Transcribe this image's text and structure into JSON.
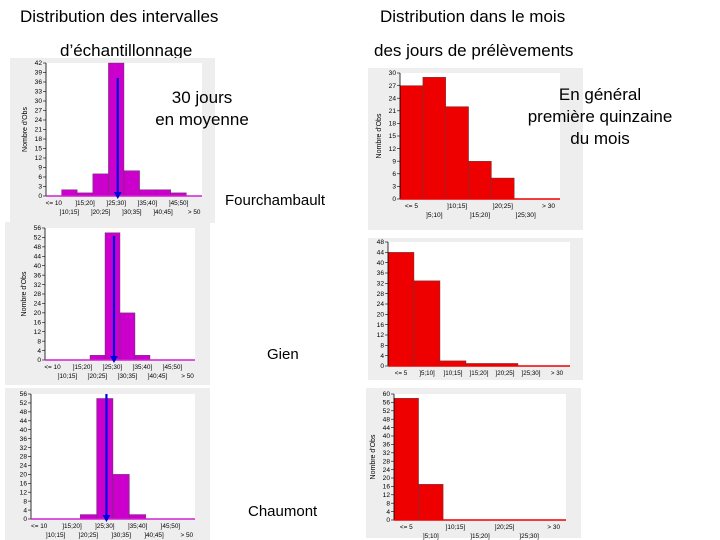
{
  "headings": {
    "left_line1": "Distribution des intervalles",
    "left_line2": "d’échantillonnage",
    "right_line1": "Distribution dans le mois",
    "right_line2": "des jours de prélèvements"
  },
  "annotations": {
    "avg_line1": "30 jours",
    "avg_line2": "en moyenne",
    "general_line1": "En général",
    "general_line2": "première quinzaine",
    "general_line3": "du mois"
  },
  "sites": [
    "Fourchambault",
    "Gien",
    "Chaumont"
  ],
  "colors": {
    "interval_bars": "#cc00cc",
    "interval_axis": "#d020d0",
    "day_bars": "#ee0000",
    "marker": "#0000dd"
  },
  "chart_data": [
    {
      "type": "bar",
      "site": "Fourchambault",
      "group": "intervalles",
      "ylabel": "Nombre d'Obs",
      "ylim": [
        0,
        42
      ],
      "yticks": [
        0,
        3,
        6,
        9,
        12,
        15,
        18,
        21,
        24,
        27,
        30,
        33,
        36,
        39,
        42
      ],
      "categories": [
        "<= 10",
        "]10;15]",
        "]15;20]",
        "]20;25]",
        "]25;30]",
        "]30;35]",
        "]35;40]",
        "]40;45]",
        "]45;50]",
        "> 50"
      ],
      "tick_row1": [
        "<= 10",
        "]15;20]",
        "]25;30]",
        "]35;40]",
        "]45;50]"
      ],
      "tick_row2": [
        "]10;15]",
        "]20;25]",
        "]30;35]",
        "]40;45]",
        "> 50"
      ],
      "values": [
        0,
        2,
        1,
        7,
        42,
        8,
        2,
        2,
        1,
        0
      ],
      "marker_category": 4
    },
    {
      "type": "bar",
      "site": "Fourchambault",
      "group": "jours",
      "ylabel": "Nombre d'Obs",
      "ylim": [
        0,
        30
      ],
      "yticks": [
        0,
        3,
        6,
        9,
        12,
        15,
        18,
        21,
        24,
        27,
        30
      ],
      "categories": [
        "<= 5",
        "]5;10]",
        "]10;15]",
        "]15;20]",
        "]20;25]",
        "]25;30]",
        "> 30"
      ],
      "tick_row1": [
        "<= 5",
        "]10;15]",
        "]20;25]",
        "> 30"
      ],
      "tick_row2": [
        "]5;10]",
        "]15;20]",
        "]25;30]"
      ],
      "values": [
        27,
        29,
        22,
        9,
        5,
        0,
        0
      ]
    },
    {
      "type": "bar",
      "site": "Gien",
      "group": "intervalles",
      "ylabel": "Nombre d'Obs",
      "ylim": [
        0,
        56
      ],
      "yticks": [
        0,
        4,
        8,
        12,
        16,
        20,
        24,
        28,
        32,
        36,
        40,
        44,
        48,
        52,
        56
      ],
      "categories": [
        "<= 10",
        "]10;15]",
        "]15;20]",
        "]20;25]",
        "]25;30]",
        "]30;35]",
        "]35;40]",
        "]40;45]",
        "]45;50]",
        "> 50"
      ],
      "tick_row1": [
        "<= 10",
        "]15;20]",
        "]25;30]",
        "]35;40]",
        "]45;50]"
      ],
      "tick_row2": [
        "]10;15]",
        "]20;25]",
        "]30;35]",
        "]40;45]",
        "> 50"
      ],
      "values": [
        0,
        0,
        0,
        2,
        54,
        20,
        2,
        0,
        0,
        0
      ],
      "marker_category": 4
    },
    {
      "type": "bar",
      "site": "Gien",
      "group": "jours",
      "ylabel": "",
      "ylim": [
        0,
        48
      ],
      "yticks": [
        0,
        4,
        8,
        12,
        16,
        20,
        24,
        28,
        32,
        36,
        40,
        44,
        48
      ],
      "categories": [
        "<= 5",
        "]5;10]",
        "]10;15]",
        "]15;20]",
        "]20;25]",
        "]25;30]",
        "> 30"
      ],
      "tick_row1": [
        "<= 5",
        "]5;10]",
        "]10;15]",
        "]15;20]",
        "]20;25]",
        "]25;30]",
        "> 30"
      ],
      "tick_row2": [],
      "values": [
        44,
        33,
        2,
        1,
        1,
        0,
        0
      ]
    },
    {
      "type": "bar",
      "site": "Chaumont",
      "group": "intervalles",
      "ylabel": "",
      "ylim": [
        0,
        56
      ],
      "yticks": [
        0,
        4,
        8,
        12,
        16,
        20,
        24,
        28,
        32,
        36,
        40,
        44,
        48,
        52,
        56
      ],
      "categories": [
        "<= 10",
        "]10;15]",
        "]15;20]",
        "]20;25]",
        "]25;30]",
        "]30;35]",
        "]35;40]",
        "]40;45]",
        "]45;50]",
        "> 50"
      ],
      "tick_row1": [
        "<= 10",
        "]15;20]",
        "]25;30]",
        "]35;40]",
        "]45;50]"
      ],
      "tick_row2": [
        "]10;15]",
        "]20;25]",
        "]30;35]",
        "]40;45]",
        "> 50"
      ],
      "values": [
        0,
        0,
        0,
        2,
        54,
        20,
        2,
        0,
        0,
        0
      ],
      "marker_category": 4
    },
    {
      "type": "bar",
      "site": "Chaumont",
      "group": "jours",
      "ylabel": "Nombre d'Obs",
      "ylim": [
        0,
        60
      ],
      "yticks": [
        0,
        4,
        8,
        12,
        16,
        20,
        24,
        28,
        32,
        36,
        40,
        44,
        48,
        52,
        56,
        60
      ],
      "categories": [
        "<= 5",
        "]5;10]",
        "]10;15]",
        "]15;20]",
        "]20;25]",
        "]25;30]",
        "> 30"
      ],
      "tick_row1": [
        "<= 5",
        "]10;15]",
        "]20;25]",
        "> 30"
      ],
      "tick_row2": [
        "]5;10]",
        "]15;20]",
        "]25;30]"
      ],
      "values": [
        58,
        17,
        0,
        0,
        0,
        0,
        0
      ]
    }
  ]
}
